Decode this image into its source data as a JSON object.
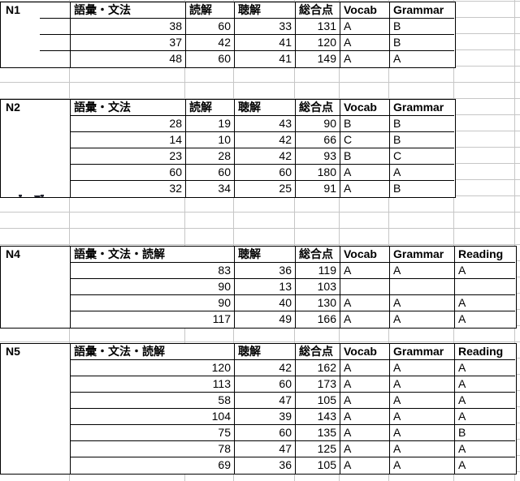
{
  "app": {
    "kind": "spreadsheet",
    "content": "JLPT score tables"
  },
  "colors": {
    "background": "#ffffff",
    "gridline": "#c6c6c6",
    "table_border": "#000000",
    "text": "#000000"
  },
  "artifact": {
    "description": "clipped descender marks of hidden text below N2 label column"
  },
  "tables": [
    {
      "label": "N1",
      "layout": "split",
      "headers": [
        "語彙・文法",
        "読解",
        "聴解",
        "総合点",
        "Vocab",
        "Grammar"
      ],
      "rows": [
        [
          38,
          60,
          33,
          131,
          "A",
          "B"
        ],
        [
          37,
          42,
          41,
          120,
          "A",
          "B"
        ],
        [
          48,
          60,
          41,
          149,
          "A",
          "A"
        ]
      ]
    },
    {
      "label": "N2",
      "layout": "split",
      "headers": [
        "語彙・文法",
        "読解",
        "聴解",
        "総合点",
        "Vocab",
        "Grammar"
      ],
      "rows": [
        [
          28,
          19,
          43,
          90,
          "B",
          "B"
        ],
        [
          14,
          10,
          42,
          66,
          "C",
          "B"
        ],
        [
          23,
          28,
          42,
          93,
          "B",
          "C"
        ],
        [
          60,
          60,
          60,
          180,
          "A",
          "A"
        ],
        [
          32,
          34,
          25,
          91,
          "A",
          "B"
        ]
      ]
    },
    {
      "label": "N4",
      "layout": "merged",
      "headers": [
        "語彙・文法・読解",
        "聴解",
        "総合点",
        "Vocab",
        "Grammar",
        "Reading"
      ],
      "rows": [
        [
          83,
          36,
          119,
          "A",
          "A",
          "A"
        ],
        [
          90,
          13,
          103,
          "",
          "",
          ""
        ],
        [
          90,
          40,
          130,
          "A",
          "A",
          "A"
        ],
        [
          117,
          49,
          166,
          "A",
          "A",
          "A"
        ]
      ]
    },
    {
      "label": "N5",
      "layout": "merged",
      "headers": [
        "語彙・文法・読解",
        "聴解",
        "総合点",
        "Vocab",
        "Grammar",
        "Reading"
      ],
      "rows": [
        [
          120,
          42,
          162,
          "A",
          "A",
          "A"
        ],
        [
          113,
          60,
          173,
          "A",
          "A",
          "A"
        ],
        [
          58,
          47,
          105,
          "A",
          "A",
          "A"
        ],
        [
          104,
          39,
          143,
          "A",
          "A",
          "A"
        ],
        [
          75,
          60,
          135,
          "A",
          "A",
          "B"
        ],
        [
          78,
          47,
          125,
          "A",
          "A",
          "A"
        ],
        [
          69,
          36,
          105,
          "A",
          "A",
          "A"
        ]
      ]
    }
  ]
}
